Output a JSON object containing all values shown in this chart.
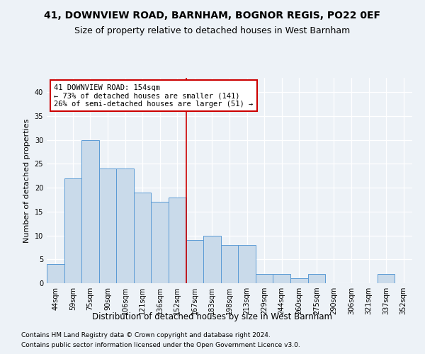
{
  "title1": "41, DOWNVIEW ROAD, BARNHAM, BOGNOR REGIS, PO22 0EF",
  "title2": "Size of property relative to detached houses in West Barnham",
  "xlabel": "Distribution of detached houses by size in West Barnham",
  "ylabel": "Number of detached properties",
  "categories": [
    "44sqm",
    "59sqm",
    "75sqm",
    "90sqm",
    "106sqm",
    "121sqm",
    "136sqm",
    "152sqm",
    "167sqm",
    "183sqm",
    "198sqm",
    "213sqm",
    "229sqm",
    "244sqm",
    "260sqm",
    "275sqm",
    "290sqm",
    "306sqm",
    "321sqm",
    "337sqm",
    "352sqm"
  ],
  "values": [
    4,
    22,
    30,
    24,
    24,
    19,
    17,
    18,
    9,
    10,
    8,
    8,
    2,
    2,
    1,
    2,
    0,
    0,
    0,
    2,
    0
  ],
  "bar_color": "#c9daea",
  "bar_edge_color": "#5b9bd5",
  "annotation_line1": "41 DOWNVIEW ROAD: 154sqm",
  "annotation_line2": "← 73% of detached houses are smaller (141)",
  "annotation_line3": "26% of semi-detached houses are larger (51) →",
  "vline_color": "#cc0000",
  "annotation_box_color": "#cc0000",
  "ylim": [
    0,
    43
  ],
  "yticks": [
    0,
    5,
    10,
    15,
    20,
    25,
    30,
    35,
    40
  ],
  "footer1": "Contains HM Land Registry data © Crown copyright and database right 2024.",
  "footer2": "Contains public sector information licensed under the Open Government Licence v3.0.",
  "bg_color": "#edf2f7",
  "plot_bg_color": "#edf2f7",
  "grid_color": "#ffffff",
  "title1_fontsize": 10,
  "title2_fontsize": 9,
  "xlabel_fontsize": 8.5,
  "ylabel_fontsize": 8,
  "tick_fontsize": 7,
  "footer_fontsize": 6.5,
  "annot_fontsize": 7.5,
  "vline_x": 7.5
}
